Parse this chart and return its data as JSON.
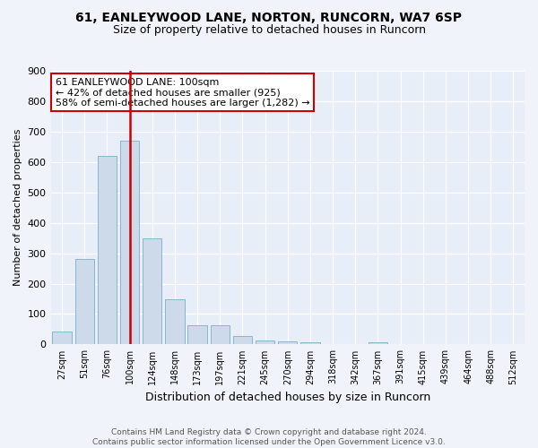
{
  "title1": "61, EANLEYWOOD LANE, NORTON, RUNCORN, WA7 6SP",
  "title2": "Size of property relative to detached houses in Runcorn",
  "xlabel": "Distribution of detached houses by size in Runcorn",
  "ylabel": "Number of detached properties",
  "categories": [
    "27sqm",
    "51sqm",
    "76sqm",
    "100sqm",
    "124sqm",
    "148sqm",
    "173sqm",
    "197sqm",
    "221sqm",
    "245sqm",
    "270sqm",
    "294sqm",
    "318sqm",
    "342sqm",
    "367sqm",
    "391sqm",
    "415sqm",
    "439sqm",
    "464sqm",
    "488sqm",
    "512sqm"
  ],
  "values": [
    42,
    280,
    620,
    670,
    348,
    148,
    63,
    63,
    28,
    13,
    10,
    8,
    0,
    0,
    7,
    0,
    0,
    0,
    0,
    0,
    0
  ],
  "bar_color": "#ccdaea",
  "bar_edge_color": "#8ab4d0",
  "vline_x": 3,
  "vline_color": "#cc0000",
  "annotation_text": "61 EANLEYWOOD LANE: 100sqm\n← 42% of detached houses are smaller (925)\n58% of semi-detached houses are larger (1,282) →",
  "annotation_box_color": "#ffffff",
  "annotation_box_edge_color": "#cc0000",
  "ylim": [
    0,
    900
  ],
  "yticks": [
    0,
    100,
    200,
    300,
    400,
    500,
    600,
    700,
    800,
    900
  ],
  "footer": "Contains HM Land Registry data © Crown copyright and database right 2024.\nContains public sector information licensed under the Open Government Licence v3.0.",
  "bg_color": "#f0f4fa",
  "plot_bg_color": "#e8eef8",
  "grid_color": "#ffffff",
  "title1_fontsize": 10,
  "title2_fontsize": 9
}
